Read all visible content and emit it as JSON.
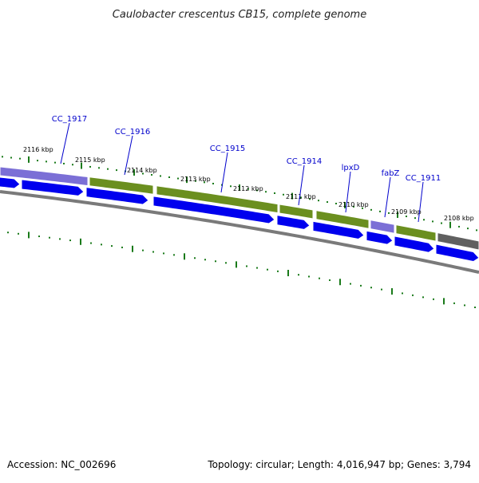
{
  "title": "Caulobacter crescentus CB15, complete genome",
  "footer": {
    "accession": "Accession: NC_002696",
    "summary": "Topology: circular; Length: 4,016,947 bp; Genes: 3,794"
  },
  "colors": {
    "cds": "#0000ee",
    "segment_green": "#6b8f1f",
    "segment_purple": "#7b6fd6",
    "segment_gray": "#606060",
    "backbone": "#7a7a7a",
    "ticks": "#1a7a1a",
    "label": "#0000cc"
  },
  "scale_labels": [
    "2116 kbp",
    "2115 kbp",
    "2114 kbp",
    "2113 kbp",
    "2112 kbp",
    "2111 kbp",
    "2110 kbp",
    "2109 kbp",
    "2108 kbp"
  ],
  "gene_labels": [
    "CC_1917",
    "CC_1916",
    "CC_1915",
    "CC_1914",
    "lpxD",
    "fabZ",
    "CC_1911"
  ]
}
